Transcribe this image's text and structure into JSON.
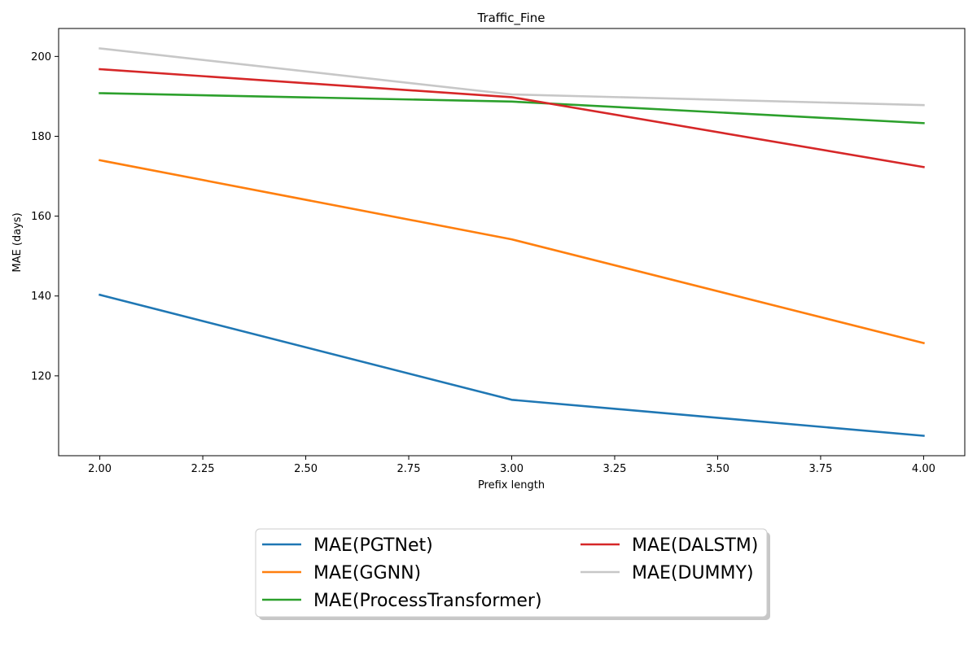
{
  "chart_data": {
    "type": "line",
    "title": "Traffic_Fine",
    "xlabel": "Prefix length",
    "ylabel": "MAE (days)",
    "x": [
      2,
      3,
      4
    ],
    "xlim": [
      1.9,
      4.1
    ],
    "ylim": [
      100,
      207
    ],
    "xticks": [
      2.0,
      2.25,
      2.5,
      2.75,
      3.0,
      3.25,
      3.5,
      3.75,
      4.0
    ],
    "xtick_labels": [
      "2.00",
      "2.25",
      "2.50",
      "2.75",
      "3.00",
      "3.25",
      "3.50",
      "3.75",
      "4.00"
    ],
    "yticks": [
      120,
      140,
      160,
      180,
      200
    ],
    "ytick_labels": [
      "120",
      "140",
      "160",
      "180",
      "200"
    ],
    "grid": false,
    "legend_position": "below-center",
    "series": [
      {
        "name": "MAE(PGTNet)",
        "color": "#1f77b4",
        "values": [
          140.3,
          114.0,
          105.0
        ]
      },
      {
        "name": "MAE(GGNN)",
        "color": "#ff7f0e",
        "values": [
          174.0,
          154.2,
          128.2
        ]
      },
      {
        "name": "MAE(ProcessTransformer)",
        "color": "#2ca02c",
        "values": [
          190.8,
          188.7,
          183.3
        ]
      },
      {
        "name": "MAE(DALSTM)",
        "color": "#d62728",
        "values": [
          196.8,
          189.8,
          172.3
        ]
      },
      {
        "name": "MAE(DUMMY)",
        "color": "#c7c7c7",
        "values": [
          202.0,
          190.5,
          187.8
        ]
      }
    ]
  }
}
